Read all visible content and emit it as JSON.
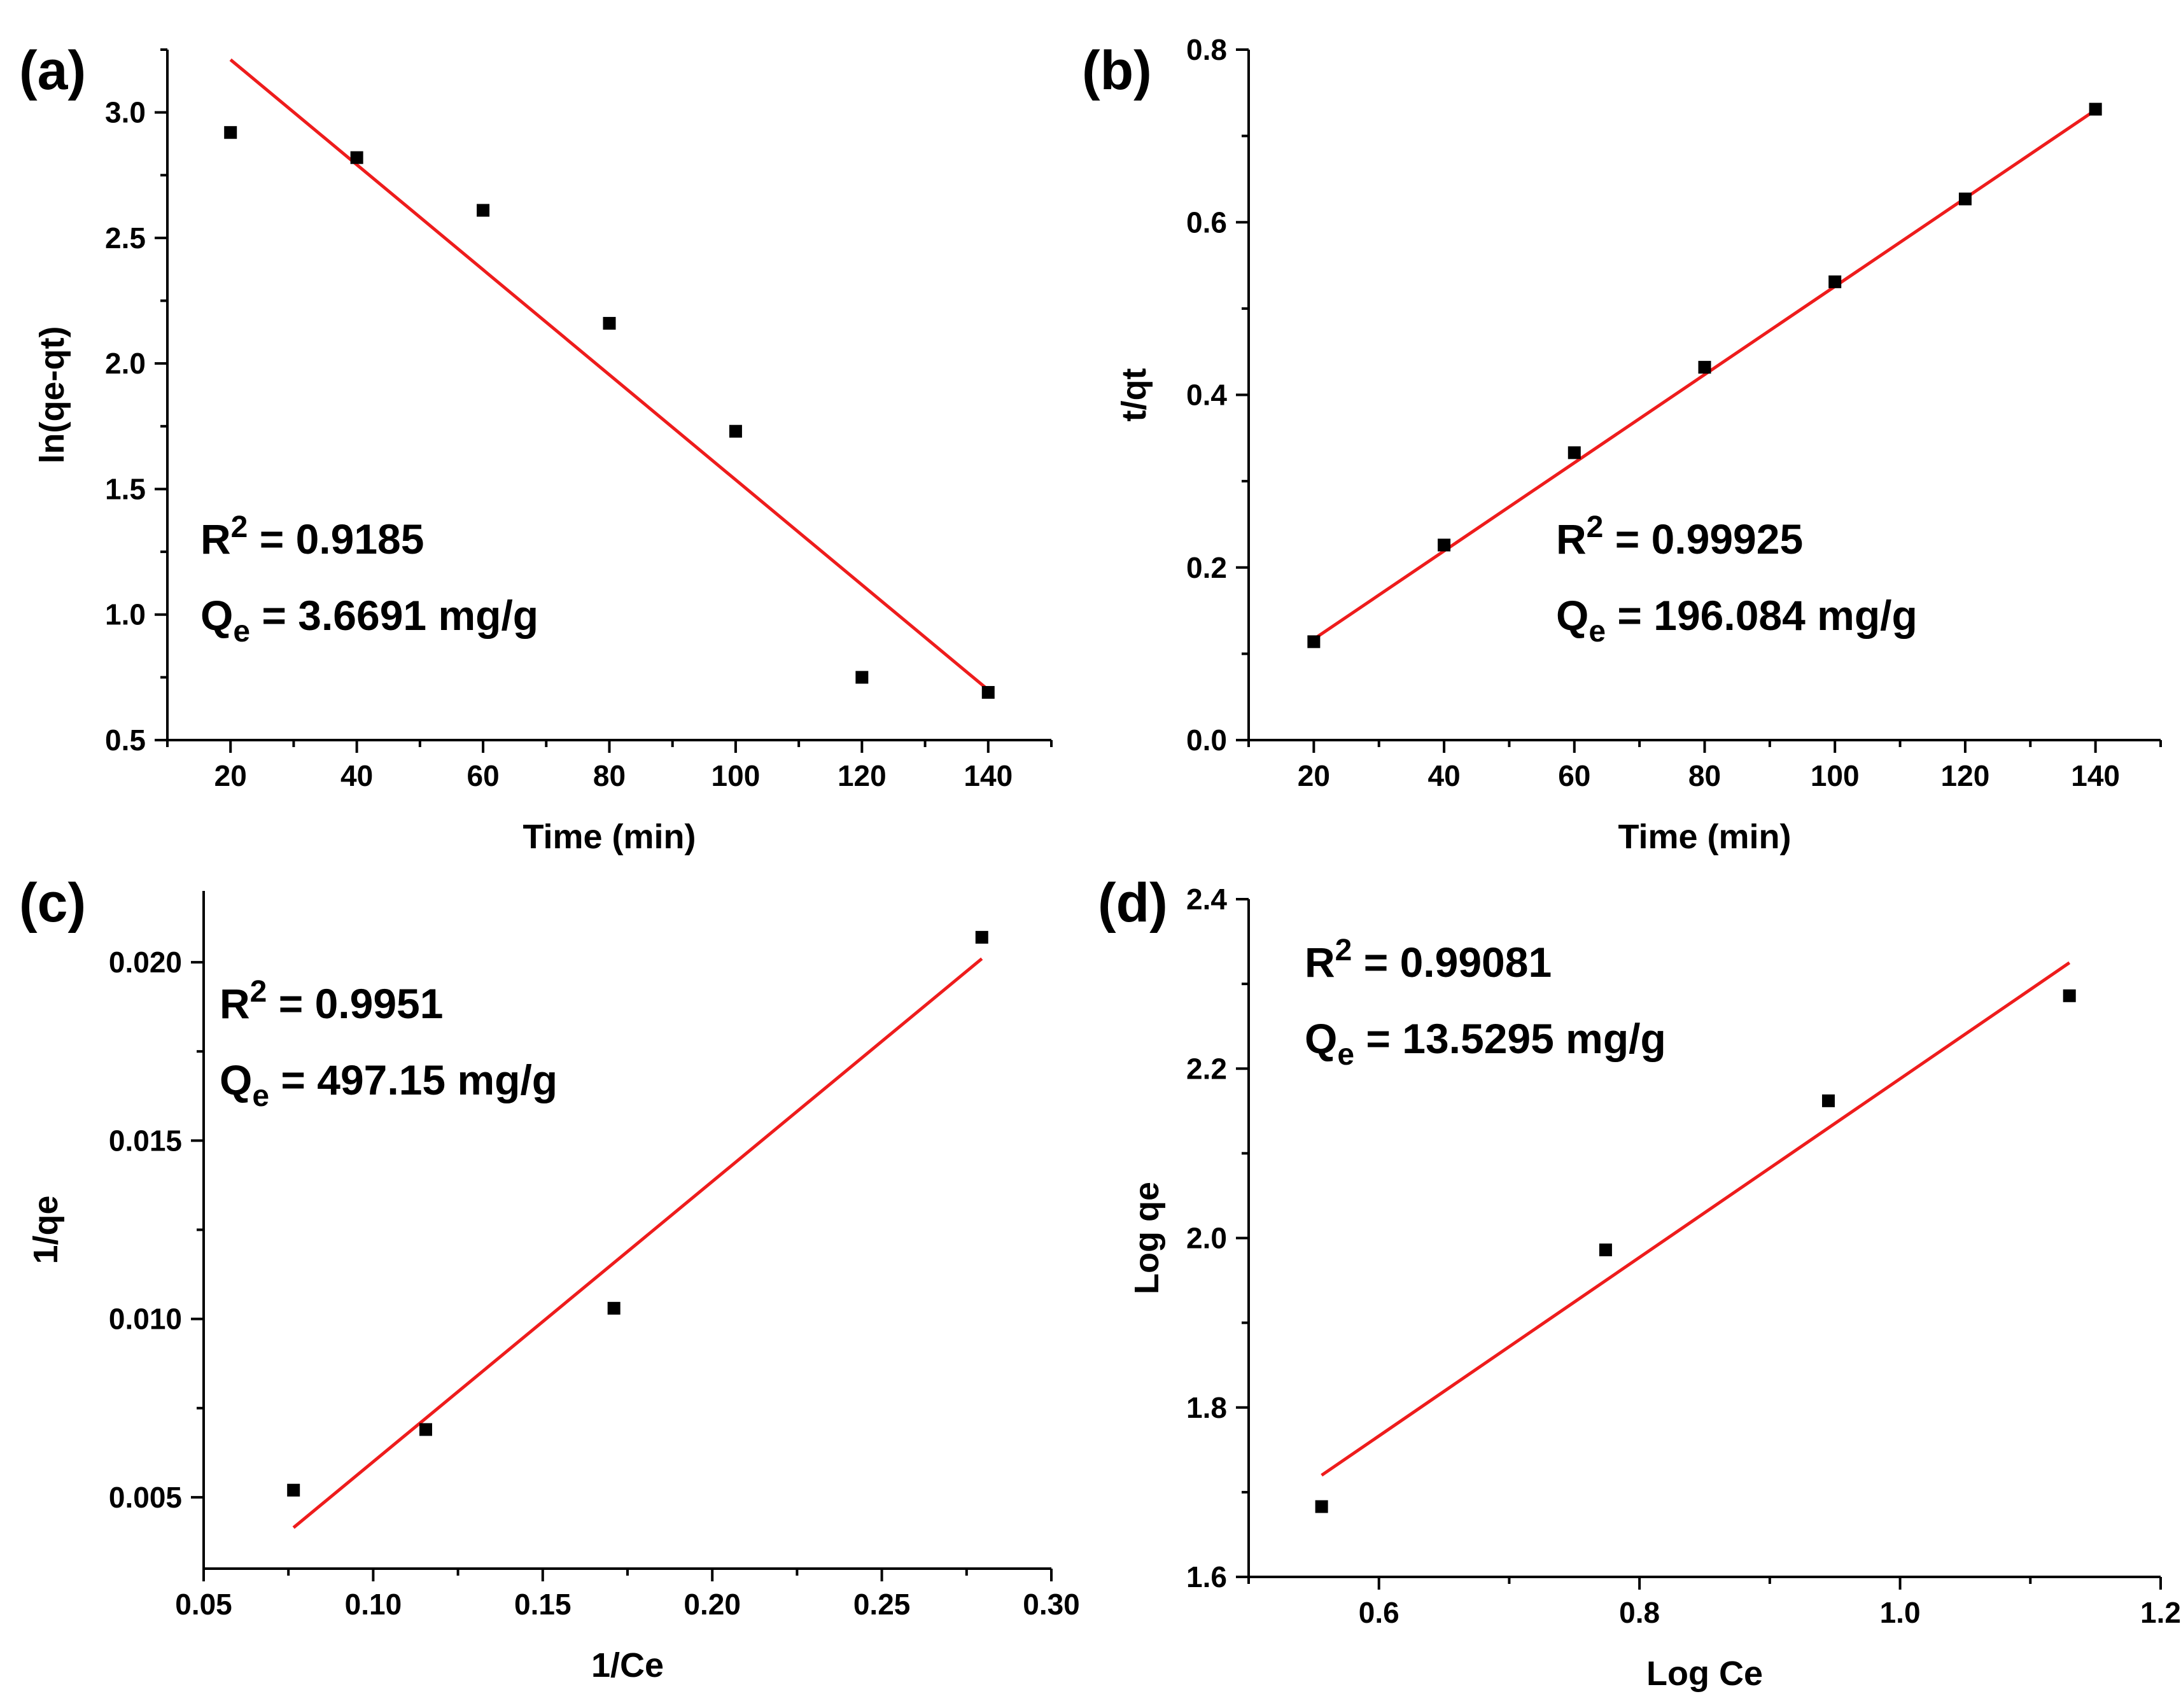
{
  "colors": {
    "fit_line": "#ee1c1c",
    "marker": "#000000",
    "axis": "#000000",
    "background": "#ffffff"
  },
  "chart_data": [
    {
      "id": "a",
      "panel_label": "(a)",
      "type": "scatter",
      "xlabel": "Time (min)",
      "ylabel": "ln(qe-qt)",
      "xlim": [
        10,
        150
      ],
      "ylim": [
        0.5,
        3.25
      ],
      "xticks": [
        20,
        40,
        60,
        80,
        100,
        120,
        140
      ],
      "xtick_labels": [
        "20",
        "40",
        "60",
        "80",
        "100",
        "120",
        "140"
      ],
      "yticks": [
        0.5,
        1.0,
        1.5,
        2.0,
        2.5,
        3.0
      ],
      "ytick_labels": [
        "0.5",
        "1.0",
        "1.5",
        "2.0",
        "2.5",
        "3.0"
      ],
      "points": {
        "x": [
          20,
          40,
          60,
          80,
          100,
          120,
          140
        ],
        "y": [
          2.92,
          2.82,
          2.61,
          2.16,
          1.73,
          0.75,
          0.69
        ]
      },
      "fit": {
        "x": [
          20,
          140
        ],
        "y": [
          3.21,
          0.7
        ]
      },
      "annotation": {
        "r2_prefix": "R",
        "r2_sup": "2",
        "r2_value": " = 0.9185",
        "qe_prefix": "Q",
        "qe_sub": "e",
        "qe_value": " = 3.6691 mg/g",
        "position": "lower-left"
      }
    },
    {
      "id": "b",
      "panel_label": "(b)",
      "type": "scatter",
      "xlabel": "Time (min)",
      "ylabel": "t/qt",
      "xlim": [
        10,
        150
      ],
      "ylim": [
        0.0,
        0.8
      ],
      "xticks": [
        20,
        40,
        60,
        80,
        100,
        120,
        140
      ],
      "xtick_labels": [
        "20",
        "40",
        "60",
        "80",
        "100",
        "120",
        "140"
      ],
      "yticks": [
        0.0,
        0.2,
        0.4,
        0.6,
        0.8
      ],
      "ytick_labels": [
        "0.0",
        "0.2",
        "0.4",
        "0.6",
        "0.8"
      ],
      "points": {
        "x": [
          20,
          40,
          60,
          80,
          100,
          120,
          140
        ],
        "y": [
          0.114,
          0.226,
          0.333,
          0.432,
          0.531,
          0.627,
          0.731
        ]
      },
      "fit": {
        "x": [
          20,
          140
        ],
        "y": [
          0.117,
          0.73
        ]
      },
      "annotation": {
        "r2_prefix": "R",
        "r2_sup": "2",
        "r2_value": " = 0.99925",
        "qe_prefix": "Q",
        "qe_sub": "e",
        "qe_value": " = 196.084 mg/g",
        "position": "lower-right"
      }
    },
    {
      "id": "c",
      "panel_label": "(c)",
      "type": "scatter",
      "xlabel": "1/Ce",
      "ylabel": "1/qe",
      "xlim": [
        0.05,
        0.3
      ],
      "ylim": [
        0.003,
        0.022
      ],
      "xticks": [
        0.05,
        0.1,
        0.15,
        0.2,
        0.25,
        0.3
      ],
      "xtick_labels": [
        "0.05",
        "0.10",
        "0.15",
        "0.20",
        "0.25",
        "0.30"
      ],
      "yticks": [
        0.005,
        0.01,
        0.015,
        0.02
      ],
      "ytick_labels": [
        "0.005",
        "0.010",
        "0.015",
        "0.020"
      ],
      "points": {
        "x": [
          0.0765,
          0.1155,
          0.171,
          0.2795
        ],
        "y": [
          0.0052,
          0.0069,
          0.0103,
          0.0207
        ]
      },
      "fit": {
        "x": [
          0.0765,
          0.2795
        ],
        "y": [
          0.00415,
          0.0201
        ]
      },
      "annotation": {
        "r2_prefix": "R",
        "r2_sup": "2",
        "r2_value": " = 0.9951",
        "qe_prefix": "Q",
        "qe_sub": "e",
        "qe_value": " = 497.15 mg/g",
        "position": "upper-left"
      }
    },
    {
      "id": "d",
      "panel_label": "(d)",
      "type": "scatter",
      "xlabel": "Log Ce",
      "ylabel": "Log qe",
      "xlim": [
        0.5,
        1.2
      ],
      "ylim": [
        1.6,
        2.4
      ],
      "xticks": [
        0.6,
        0.8,
        1.0,
        1.2
      ],
      "xtick_labels": [
        "0.6",
        "0.8",
        "1.0",
        "1.2"
      ],
      "yticks": [
        1.6,
        1.8,
        2.0,
        2.2,
        2.4
      ],
      "ytick_labels": [
        "1.6",
        "1.8",
        "2.0",
        "2.2",
        "2.4"
      ],
      "points": {
        "x": [
          0.556,
          0.774,
          0.945,
          1.13
        ],
        "y": [
          1.683,
          1.986,
          2.162,
          2.286
        ]
      },
      "fit": {
        "x": [
          0.556,
          1.13
        ],
        "y": [
          1.72,
          2.325
        ]
      },
      "annotation": {
        "r2_prefix": "R",
        "r2_sup": "2",
        "r2_value": " = 0.99081",
        "qe_prefix": "Q",
        "qe_sub": "e",
        "qe_value": " = 13.5295 mg/g",
        "position": "upper-left"
      }
    }
  ]
}
